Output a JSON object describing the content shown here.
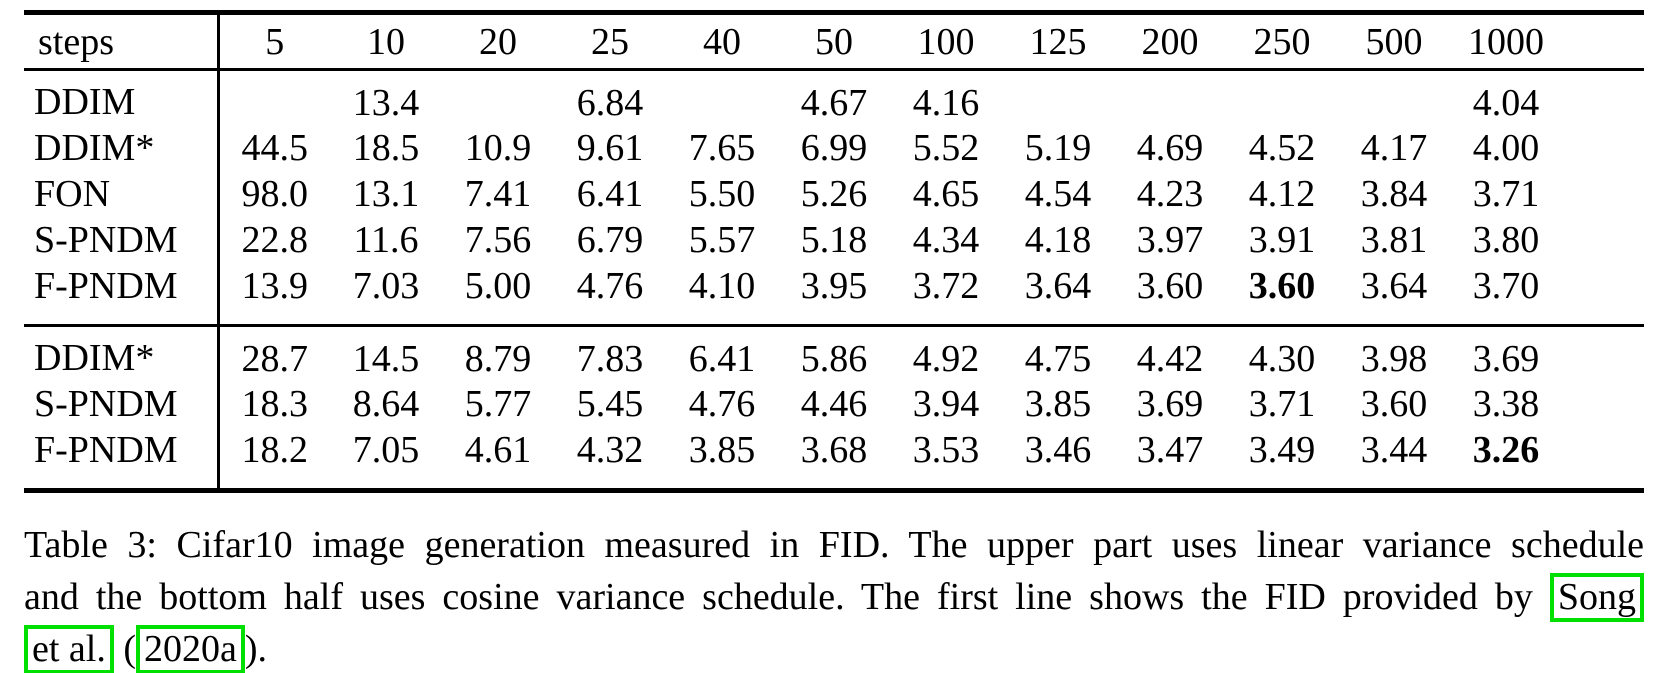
{
  "colors": {
    "citation_box_green": "#00e000",
    "text": "#000000",
    "background": "#ffffff"
  },
  "table": {
    "corner_label": "steps",
    "step_columns": [
      "5",
      "10",
      "20",
      "25",
      "40",
      "50",
      "100",
      "125",
      "200",
      "250",
      "500",
      "1000"
    ],
    "groups": [
      {
        "rows": [
          {
            "label": "DDIM",
            "values": [
              "",
              "13.4",
              "",
              "6.84",
              "",
              "4.67",
              "4.16",
              "",
              "",
              "",
              "",
              "4.04"
            ],
            "bold": []
          },
          {
            "label": "DDIM*",
            "values": [
              "44.5",
              "18.5",
              "10.9",
              "9.61",
              "7.65",
              "6.99",
              "5.52",
              "5.19",
              "4.69",
              "4.52",
              "4.17",
              "4.00"
            ],
            "bold": []
          },
          {
            "label": "FON",
            "values": [
              "98.0",
              "13.1",
              "7.41",
              "6.41",
              "5.50",
              "5.26",
              "4.65",
              "4.54",
              "4.23",
              "4.12",
              "3.84",
              "3.71"
            ],
            "bold": []
          },
          {
            "label": "S-PNDM",
            "values": [
              "22.8",
              "11.6",
              "7.56",
              "6.79",
              "5.57",
              "5.18",
              "4.34",
              "4.18",
              "3.97",
              "3.91",
              "3.81",
              "3.80"
            ],
            "bold": []
          },
          {
            "label": "F-PNDM",
            "values": [
              "13.9",
              "7.03",
              "5.00",
              "4.76",
              "4.10",
              "3.95",
              "3.72",
              "3.64",
              "3.60",
              "3.60",
              "3.64",
              "3.70"
            ],
            "bold": [
              9
            ]
          }
        ]
      },
      {
        "rows": [
          {
            "label": "DDIM*",
            "values": [
              "28.7",
              "14.5",
              "8.79",
              "7.83",
              "6.41",
              "5.86",
              "4.92",
              "4.75",
              "4.42",
              "4.30",
              "3.98",
              "3.69"
            ],
            "bold": []
          },
          {
            "label": "S-PNDM",
            "values": [
              "18.3",
              "8.64",
              "5.77",
              "5.45",
              "4.76",
              "4.46",
              "3.94",
              "3.85",
              "3.69",
              "3.71",
              "3.60",
              "3.38"
            ],
            "bold": []
          },
          {
            "label": "F-PNDM",
            "values": [
              "18.2",
              "7.05",
              "4.61",
              "4.32",
              "3.85",
              "3.68",
              "3.53",
              "3.46",
              "3.47",
              "3.49",
              "3.44",
              "3.26"
            ],
            "bold": [
              11
            ]
          }
        ]
      }
    ]
  },
  "caption": {
    "line1": "Table 3: Cifar10 image generation measured in FID. The upper part uses linear variance schedule",
    "line2_text": "and the bottom half uses cosine variance schedule. The first line shows the FID provided by",
    "cite_song": "Song",
    "cite_etal": "et al.",
    "between": "(",
    "cite_year": "2020a",
    "after": ")."
  }
}
